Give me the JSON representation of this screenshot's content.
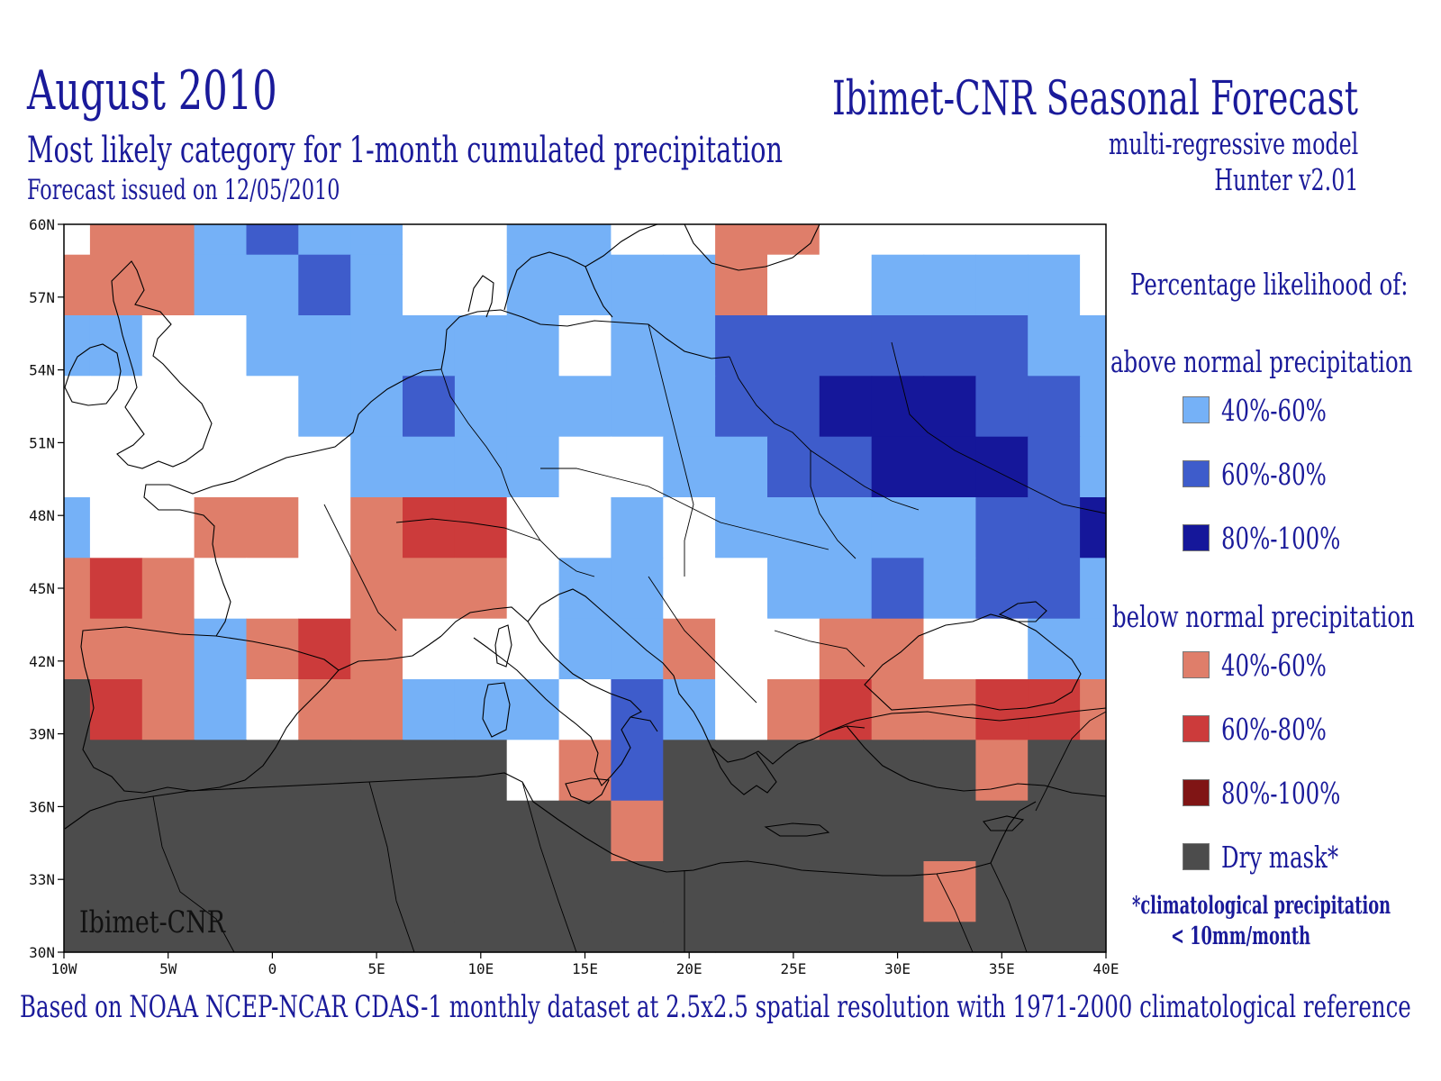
{
  "title": "August 2010",
  "subtitle": "Most likely category for 1-month cumulated precipitation",
  "issued": "Forecast issued on 12/05/2010",
  "org_title": "Ibimet-CNR Seasonal Forecast",
  "model": "multi-regressive model",
  "version": "Hunter v2.01",
  "footer": "Based on NOAA NCEP-NCAR CDAS-1 monthly dataset at 2.5x2.5 spatial resolution with 1971-2000 climatological reference",
  "watermark": "Ibimet-CNR",
  "legend": {
    "heading": "Percentage likelihood of:",
    "above_heading": "above normal precipitation",
    "below_heading": "below normal precipitation",
    "above_items": [
      {
        "label": "40%-60%",
        "color": "#75b1f7"
      },
      {
        "label": "60%-80%",
        "color": "#3e5ccb"
      },
      {
        "label": "80%-100%",
        "color": "#15179a"
      }
    ],
    "below_items": [
      {
        "label": "40%-60%",
        "color": "#df7e6a"
      },
      {
        "label": "60%-80%",
        "color": "#cc3b3b"
      },
      {
        "label": "80%-100%",
        "color": "#801515"
      }
    ],
    "dry_label": "Dry mask*",
    "dry_color": "#4c4c4c",
    "note_line1": "*climatological precipitation",
    "note_line2": "< 10mm/month"
  },
  "axes": {
    "x_ticks": [
      "10W",
      "5W",
      "0",
      "5E",
      "10E",
      "15E",
      "20E",
      "25E",
      "30E",
      "35E",
      "40E"
    ],
    "y_ticks": [
      "60N",
      "57N",
      "54N",
      "51N",
      "48N",
      "45N",
      "42N",
      "39N",
      "36N",
      "33N",
      "30N"
    ],
    "lon_range": [
      -10,
      40
    ],
    "lat_range": [
      30,
      60
    ]
  },
  "chart_data": {
    "type": "heatmap",
    "description_keys": "rows from north (lat 60N) to south (lat 30N), columns from west (10W) to east (40E); approx 2.5 degree cells",
    "category_codes": {
      "W": "white / no signal",
      "A1": "above 40-60%",
      "A2": "above 60-80%",
      "A3": "above 80-100%",
      "B1": "below 40-60%",
      "B2": "below 60-80%",
      "B3": "below 80-100%",
      "D": "dry mask"
    },
    "lon_edges": [
      -10,
      -8.75,
      -6.25,
      -3.75,
      -1.25,
      1.25,
      3.75,
      6.25,
      8.75,
      11.25,
      13.75,
      16.25,
      18.75,
      21.25,
      23.75,
      26.25,
      28.75,
      31.25,
      33.75,
      36.25,
      38.75,
      40
    ],
    "lat_edges": [
      60,
      58.75,
      56.25,
      53.75,
      51.25,
      48.75,
      46.25,
      43.75,
      41.25,
      38.75,
      36.25,
      33.75,
      31.25,
      30
    ],
    "grid": [
      [
        "W",
        "B1",
        "B1",
        "A1",
        "A2",
        "A1",
        "A1",
        "W",
        "W",
        "A1",
        "A1",
        "W",
        "W",
        "B1",
        "B1",
        "W",
        "W",
        "W",
        "W",
        "W",
        "W"
      ],
      [
        "B1",
        "B1",
        "B1",
        "A1",
        "A1",
        "A2",
        "A1",
        "W",
        "W",
        "A1",
        "A1",
        "A1",
        "A1",
        "B1",
        "W",
        "W",
        "A1",
        "A1",
        "A1",
        "A1",
        "W"
      ],
      [
        "A1",
        "A1",
        "W",
        "W",
        "A1",
        "A1",
        "A1",
        "A1",
        "A1",
        "A1",
        "W",
        "A1",
        "A1",
        "A2",
        "A2",
        "A2",
        "A2",
        "A2",
        "A2",
        "A1",
        "A1"
      ],
      [
        "W",
        "W",
        "W",
        "W",
        "W",
        "A1",
        "A1",
        "A2",
        "A1",
        "A1",
        "A1",
        "A1",
        "A1",
        "A2",
        "A2",
        "A3",
        "A3",
        "A3",
        "A2",
        "A2",
        "A1"
      ],
      [
        "W",
        "W",
        "W",
        "W",
        "W",
        "W",
        "A1",
        "A1",
        "A1",
        "A1",
        "W",
        "W",
        "A1",
        "A1",
        "A2",
        "A2",
        "A3",
        "A3",
        "A3",
        "A2",
        "A1"
      ],
      [
        "A1",
        "W",
        "W",
        "B1",
        "B1",
        "W",
        "B1",
        "B2",
        "B2",
        "W",
        "W",
        "A1",
        "W",
        "A1",
        "A1",
        "A1",
        "A1",
        "A1",
        "A2",
        "A2",
        "A3"
      ],
      [
        "B1",
        "B2",
        "B1",
        "W",
        "W",
        "W",
        "B1",
        "B1",
        "B1",
        "W",
        "A1",
        "A1",
        "W",
        "W",
        "A1",
        "A1",
        "A2",
        "A1",
        "A2",
        "A2",
        "A1"
      ],
      [
        "B1",
        "B1",
        "B1",
        "A1",
        "B1",
        "B2",
        "B1",
        "W",
        "W",
        "W",
        "A1",
        "A1",
        "B1",
        "W",
        "W",
        "B1",
        "B1",
        "W",
        "W",
        "A1",
        "A1"
      ],
      [
        "D",
        "B2",
        "B1",
        "A1",
        "W",
        "B1",
        "B1",
        "A1",
        "A1",
        "A1",
        "W",
        "A2",
        "A1",
        "W",
        "B1",
        "B2",
        "B1",
        "B1",
        "B2",
        "B2",
        "B1"
      ],
      [
        "D",
        "D",
        "D",
        "D",
        "D",
        "D",
        "D",
        "D",
        "D",
        "W",
        "B1",
        "A2",
        "D",
        "D",
        "D",
        "D",
        "D",
        "D",
        "B1",
        "D",
        "D"
      ],
      [
        "D",
        "D",
        "D",
        "D",
        "D",
        "D",
        "D",
        "D",
        "D",
        "D",
        "D",
        "B1",
        "D",
        "D",
        "D",
        "D",
        "D",
        "D",
        "D",
        "D",
        "D"
      ],
      [
        "D",
        "D",
        "D",
        "D",
        "D",
        "D",
        "D",
        "D",
        "D",
        "D",
        "D",
        "D",
        "D",
        "D",
        "D",
        "D",
        "D",
        "B1",
        "D",
        "D",
        "D"
      ],
      [
        "D",
        "D",
        "D",
        "D",
        "D",
        "D",
        "D",
        "D",
        "D",
        "D",
        "D",
        "D",
        "D",
        "D",
        "D",
        "D",
        "D",
        "D",
        "D",
        "D",
        "D"
      ]
    ]
  }
}
